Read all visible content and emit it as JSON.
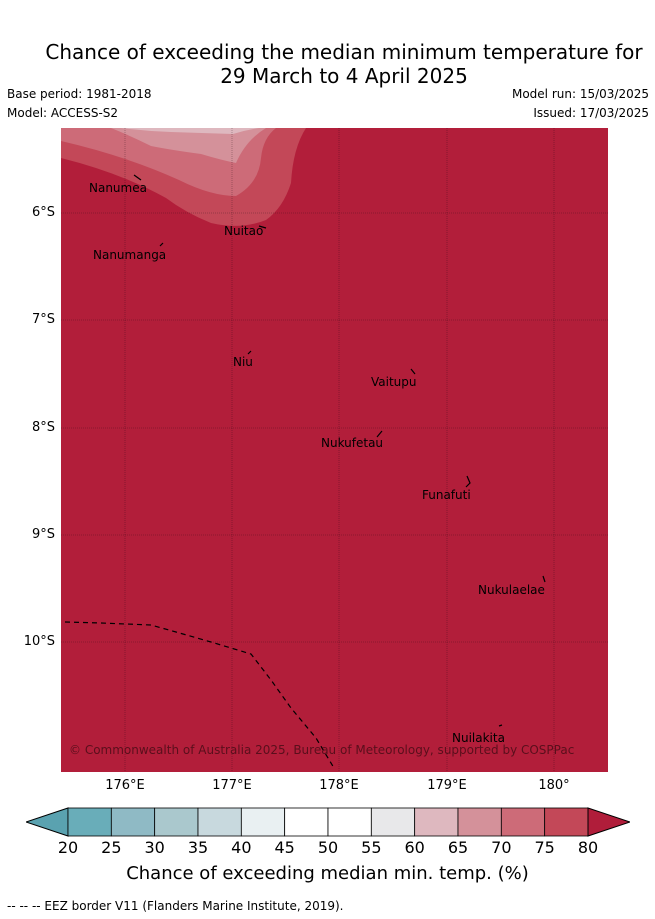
{
  "title_line1": "Chance of exceeding the median minimum temperature for",
  "title_line2": "29 March to 4 April 2025",
  "base_period": "Base period: 1981-2018",
  "model": "Model: ACCESS-S2",
  "model_run": "Model run: 15/03/2025",
  "issued": "Issued: 17/03/2025",
  "lat_labels": [
    "6°S",
    "7°S",
    "8°S",
    "9°S",
    "10°S"
  ],
  "lon_labels": [
    "176°E",
    "177°E",
    "178°E",
    "179°E",
    "180°"
  ],
  "islands": [
    {
      "name": "Nanumea"
    },
    {
      "name": "Nanumanga"
    },
    {
      "name": "Nuitao"
    },
    {
      "name": "Niu"
    },
    {
      "name": "Vaitupu"
    },
    {
      "name": "Nukufetau"
    },
    {
      "name": "Funafuti"
    },
    {
      "name": "Nukulaelae"
    },
    {
      "name": "Nuilakita"
    }
  ],
  "copyright": "© Commonwealth of Australia 2025, Bureau of Meteorology, supported by COSPPac",
  "colorbar": {
    "ticks": [
      "20",
      "25",
      "30",
      "35",
      "40",
      "45",
      "50",
      "55",
      "60",
      "65",
      "70",
      "75",
      "80"
    ],
    "colors": [
      "#69adb9",
      "#8fbac5",
      "#aac8cd",
      "#c8d9de",
      "#e9f0f2",
      "#ffffff",
      "#ffffff",
      "#e8e8ea",
      "#deb8bf",
      "#d4919a",
      "#cd6b78",
      "#c34858"
    ],
    "under_color": "#5aa2b0",
    "over_color": "#b01d3a",
    "label": "Chance of exceeding median min. temp. (%)"
  },
  "field_colors": {
    "background": "#b21e3a",
    "c75": "#c34858",
    "c70": "#cd6b78",
    "c65": "#d4919a",
    "c60": "#deb8bf"
  },
  "footnote": "--  --  -- EEZ border V11 (Flanders Marine Institute, 2019)."
}
